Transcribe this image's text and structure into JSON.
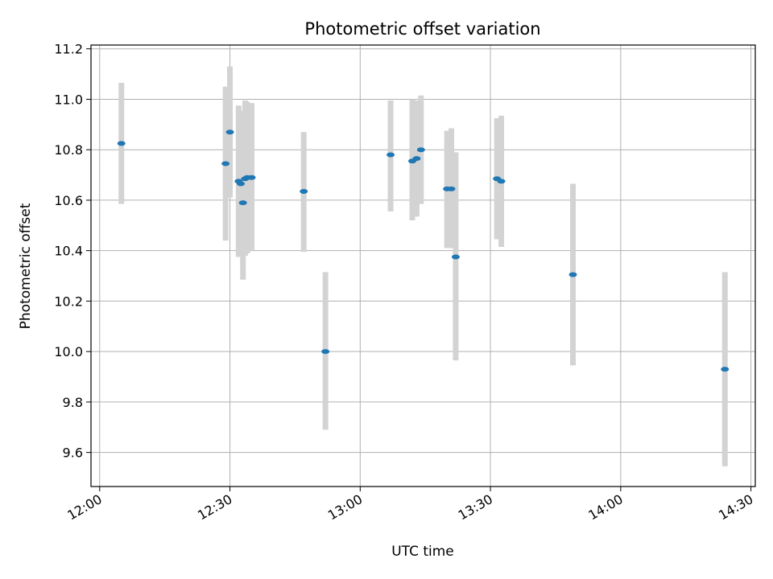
{
  "chart_data": {
    "type": "scatter",
    "title": "Photometric offset variation",
    "xlabel": "UTC time",
    "ylabel": "Photometric offset",
    "grid": true,
    "x_ticks": [
      "12:00",
      "12:30",
      "13:00",
      "13:30",
      "14:00",
      "14:30"
    ],
    "y_ticks": [
      "9.6",
      "9.8",
      "10.0",
      "10.2",
      "10.4",
      "10.6",
      "10.8",
      "11.0",
      "11.2"
    ],
    "xlim": [
      "11:58",
      "14:31"
    ],
    "ylim": [
      9.465,
      11.215
    ],
    "series": [
      {
        "marker_color": "#1f77b4",
        "errorbar_color": "#d3d3d3",
        "points": [
          {
            "t": "12:05",
            "y": 10.825,
            "ylo": 10.585,
            "yhi": 11.065
          },
          {
            "t": "12:29",
            "y": 10.745,
            "ylo": 10.44,
            "yhi": 11.05
          },
          {
            "t": "12:30",
            "y": 10.87,
            "ylo": 10.61,
            "yhi": 11.13
          },
          {
            "t": "12:32",
            "y": 10.675,
            "ylo": 10.375,
            "yhi": 10.975
          },
          {
            "t": "12:32.5",
            "y": 10.665,
            "ylo": 10.375,
            "yhi": 10.955
          },
          {
            "t": "12:33",
            "y": 10.59,
            "ylo": 10.285,
            "yhi": 10.895
          },
          {
            "t": "12:33.5",
            "y": 10.685,
            "ylo": 10.38,
            "yhi": 10.995
          },
          {
            "t": "12:34",
            "y": 10.69,
            "ylo": 10.39,
            "yhi": 10.99
          },
          {
            "t": "12:35",
            "y": 10.69,
            "ylo": 10.4,
            "yhi": 10.985
          },
          {
            "t": "12:47",
            "y": 10.635,
            "ylo": 10.395,
            "yhi": 10.87
          },
          {
            "t": "12:52",
            "y": 10.0,
            "ylo": 9.69,
            "yhi": 10.315
          },
          {
            "t": "13:07",
            "y": 10.78,
            "ylo": 10.555,
            "yhi": 10.995
          },
          {
            "t": "13:12",
            "y": 10.755,
            "ylo": 10.52,
            "yhi": 11.0
          },
          {
            "t": "13:13",
            "y": 10.765,
            "ylo": 10.535,
            "yhi": 10.995
          },
          {
            "t": "13:14",
            "y": 10.8,
            "ylo": 10.585,
            "yhi": 11.015
          },
          {
            "t": "13:20",
            "y": 10.645,
            "ylo": 10.41,
            "yhi": 10.875
          },
          {
            "t": "13:21",
            "y": 10.645,
            "ylo": 10.41,
            "yhi": 10.885
          },
          {
            "t": "13:22",
            "y": 10.375,
            "ylo": 9.965,
            "yhi": 10.79
          },
          {
            "t": "13:31.5",
            "y": 10.685,
            "ylo": 10.445,
            "yhi": 10.925
          },
          {
            "t": "13:32.5",
            "y": 10.675,
            "ylo": 10.415,
            "yhi": 10.935
          },
          {
            "t": "13:49",
            "y": 10.305,
            "ylo": 9.945,
            "yhi": 10.665
          },
          {
            "t": "14:24",
            "y": 9.93,
            "ylo": 9.545,
            "yhi": 10.315
          }
        ]
      }
    ]
  }
}
